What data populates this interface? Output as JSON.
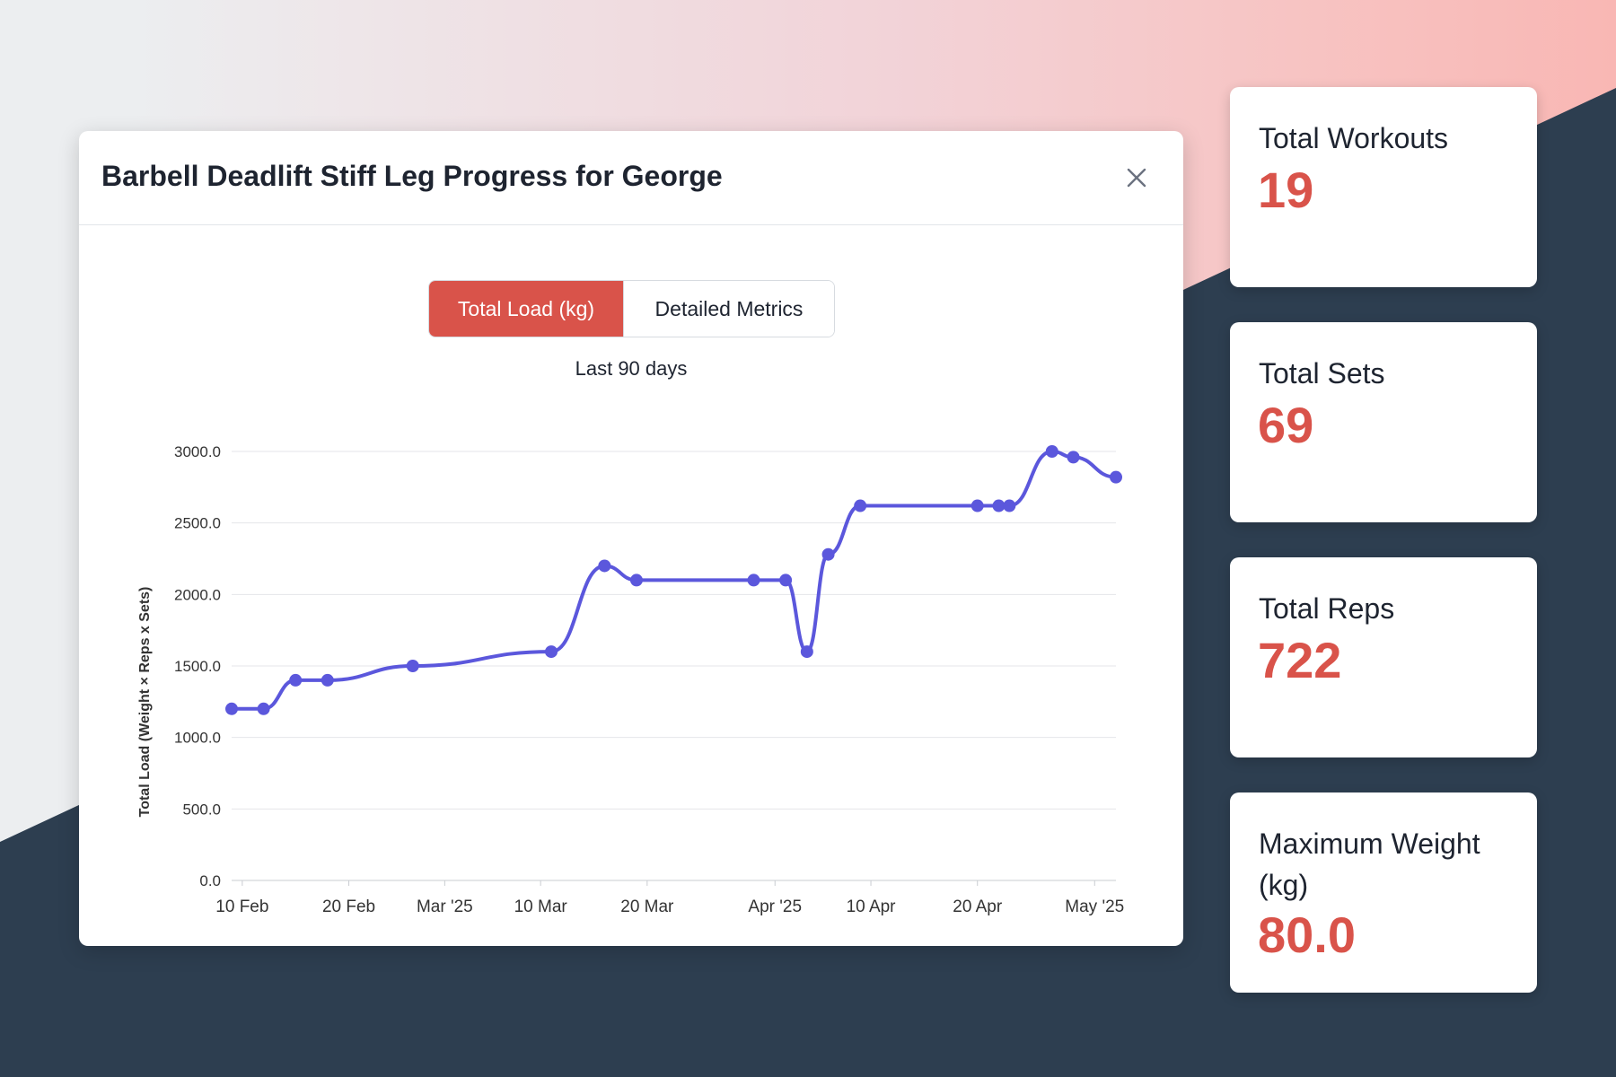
{
  "modal": {
    "title": "Barbell Deadlift Stiff Leg Progress for George",
    "tabs": [
      "Total Load (kg)",
      "Detailed Metrics"
    ],
    "active_tab": "Total Load (kg)",
    "range_label": "Last 90 days"
  },
  "colors": {
    "accent": "#d9534a",
    "line": "#5b57dc",
    "dark_background": "#2d3e50"
  },
  "icons": {
    "close": "close-icon"
  },
  "stats": [
    {
      "label": "Total Workouts",
      "value": "19"
    },
    {
      "label": "Total Sets",
      "value": "69"
    },
    {
      "label": "Total Reps",
      "value": "722"
    },
    {
      "label": "Maximum Weight (kg)",
      "value": "80.0"
    }
  ],
  "chart_data": {
    "type": "line",
    "title": "",
    "xlabel": "",
    "ylabel": "Total Load (Weight × Reps x Sets)",
    "ylim": [
      0,
      3000
    ],
    "x_range": [
      "2025-02-09",
      "2025-05-03"
    ],
    "yticks": [
      0,
      500,
      1000,
      1500,
      2000,
      2500,
      3000
    ],
    "ytick_labels": [
      "0.0",
      "500.0",
      "1000.0",
      "1500.0",
      "2000.0",
      "2500.0",
      "3000.0"
    ],
    "xticks": [
      {
        "date": "2025-02-10",
        "label": "10 Feb"
      },
      {
        "date": "2025-02-20",
        "label": "20 Feb"
      },
      {
        "date": "2025-03-01",
        "label": "Mar '25"
      },
      {
        "date": "2025-03-10",
        "label": "10 Mar"
      },
      {
        "date": "2025-03-20",
        "label": "20 Mar"
      },
      {
        "date": "2025-04-01",
        "label": "Apr '25"
      },
      {
        "date": "2025-04-10",
        "label": "10 Apr"
      },
      {
        "date": "2025-04-20",
        "label": "20 Apr"
      },
      {
        "date": "2025-05-01",
        "label": "May '25"
      }
    ],
    "grid": true,
    "legend": "none",
    "series": [
      {
        "points": [
          {
            "x": "2025-02-09",
            "y": 1200
          },
          {
            "x": "2025-02-12",
            "y": 1200
          },
          {
            "x": "2025-02-15",
            "y": 1400
          },
          {
            "x": "2025-02-18",
            "y": 1400
          },
          {
            "x": "2025-02-26",
            "y": 1500
          },
          {
            "x": "2025-03-11",
            "y": 1600
          },
          {
            "x": "2025-03-16",
            "y": 2200
          },
          {
            "x": "2025-03-19",
            "y": 2100
          },
          {
            "x": "2025-03-30",
            "y": 2100
          },
          {
            "x": "2025-04-02",
            "y": 2100
          },
          {
            "x": "2025-04-04",
            "y": 1600
          },
          {
            "x": "2025-04-06",
            "y": 2280
          },
          {
            "x": "2025-04-09",
            "y": 2620
          },
          {
            "x": "2025-04-20",
            "y": 2620
          },
          {
            "x": "2025-04-22",
            "y": 2620
          },
          {
            "x": "2025-04-23",
            "y": 2620
          },
          {
            "x": "2025-04-27",
            "y": 3000
          },
          {
            "x": "2025-04-29",
            "y": 2960
          },
          {
            "x": "2025-05-03",
            "y": 2820
          }
        ]
      }
    ]
  }
}
